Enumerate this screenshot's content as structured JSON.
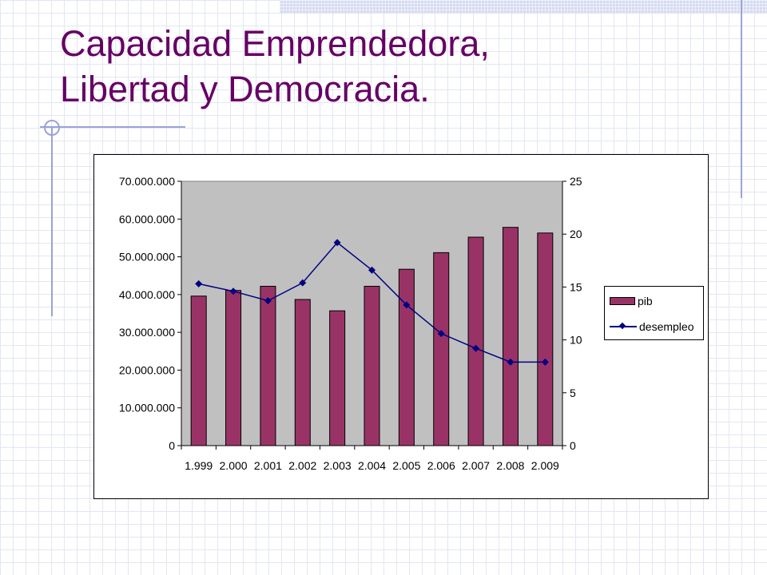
{
  "slide": {
    "title_line1": "Capacidad Emprendedora,",
    "title_line2": "Libertad y Democracia."
  },
  "colors": {
    "title": "#660066",
    "bar_fill": "#993366",
    "line_color": "#000080",
    "plot_bg": "#c0c0c0"
  },
  "chart_data": {
    "type": "bar",
    "title": "",
    "xlabel": "",
    "ylabel": "",
    "categories": [
      "1.999",
      "2.000",
      "2.001",
      "2.002",
      "2.003",
      "2.004",
      "2.005",
      "2.006",
      "2.007",
      "2.008",
      "2.009"
    ],
    "series": [
      {
        "name": "pib",
        "type": "bar",
        "axis": "left",
        "values": [
          39600000,
          41100000,
          42200000,
          38700000,
          35700000,
          42200000,
          46700000,
          51100000,
          55200000,
          57800000,
          56300000
        ]
      },
      {
        "name": "desempleo",
        "type": "line",
        "axis": "right",
        "values": [
          15.3,
          14.6,
          13.7,
          15.4,
          19.2,
          16.6,
          13.3,
          10.6,
          9.2,
          7.9,
          7.9
        ]
      }
    ],
    "y_left": {
      "lim": [
        0,
        70000000
      ],
      "ticks": [
        0,
        10000000,
        20000000,
        30000000,
        40000000,
        50000000,
        60000000,
        70000000
      ],
      "tick_labels": [
        "0",
        "10.000.000",
        "20.000.000",
        "30.000.000",
        "40.000.000",
        "50.000.000",
        "60.000.000",
        "70.000.000"
      ]
    },
    "y_right": {
      "lim": [
        0,
        25
      ],
      "ticks": [
        0,
        5,
        10,
        15,
        20,
        25
      ],
      "tick_labels": [
        "0",
        "5",
        "10",
        "15",
        "20",
        "25"
      ]
    },
    "grid": false,
    "legend": {
      "position": "right",
      "entries": [
        "pib",
        "desempleo"
      ]
    }
  }
}
